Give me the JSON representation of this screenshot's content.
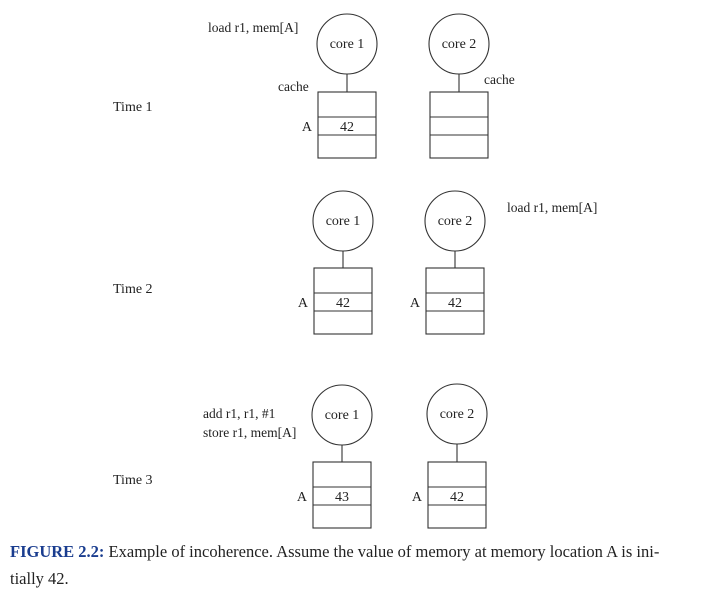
{
  "caption": {
    "figure_label": "FIGURE 2.2:",
    "text_line1": " Example of incoherence. Assume the value of memory at memory location A is ini-",
    "text_line2": "tially 42."
  },
  "time_labels": [
    "Time 1",
    "Time 2",
    "Time 3"
  ],
  "core_labels": [
    "core 1",
    "core 2"
  ],
  "cache_label": "cache",
  "address_label": "A",
  "instructions": {
    "time1_core1": "load r1, mem[A]",
    "time2_core2": "load r1, mem[A]",
    "time3_core1_line1": "add r1, r1, #1",
    "time3_core1_line2": "store r1, mem[A]"
  },
  "cache_values": {
    "time1": {
      "core1": "42",
      "core2": ""
    },
    "time2": {
      "core1": "42",
      "core2": "42"
    },
    "time3": {
      "core1": "43",
      "core2": "42"
    }
  }
}
